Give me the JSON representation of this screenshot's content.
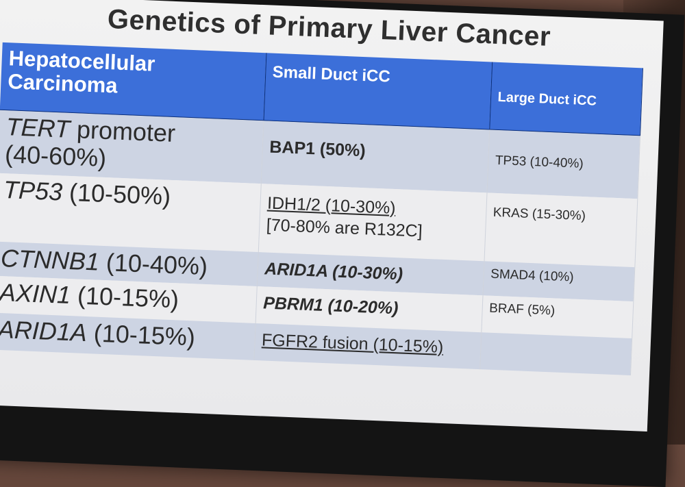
{
  "slide": {
    "title": "Genetics of Primary Liver Cancer",
    "headers": [
      "Hepatocellular Carcinoma",
      "Small Duct iCC",
      "Large Duct iCC"
    ],
    "rows": [
      {
        "hcc_gene": "TERT",
        "hcc_detail": "promoter",
        "hcc_pct": "(40-60%)",
        "small": "BAP1 (50%)",
        "small_extra": "",
        "large": "TP53 (10-40%)"
      },
      {
        "hcc_gene": "TP53",
        "hcc_detail": "",
        "hcc_pct": "(10-50%)",
        "small": "IDH1/2 (10-30%)",
        "small_extra": "[70-80% are R132C]",
        "large": "KRAS (15-30%)"
      },
      {
        "hcc_gene": "CTNNB1",
        "hcc_detail": "",
        "hcc_pct": "(10-40%)",
        "small": "ARID1A (10-30%)",
        "small_extra": "",
        "large": "SMAD4 (10%)"
      },
      {
        "hcc_gene": "AXIN1",
        "hcc_detail": "",
        "hcc_pct": "(10-15%)",
        "small": "PBRM1 (10-20%)",
        "small_extra": "",
        "large": "BRAF (5%)"
      },
      {
        "hcc_gene": "ARID1A",
        "hcc_detail": "",
        "hcc_pct": "(10-15%)",
        "small": "FGFR2 fusion (10-15%)",
        "small_extra": "",
        "large": ""
      }
    ]
  }
}
